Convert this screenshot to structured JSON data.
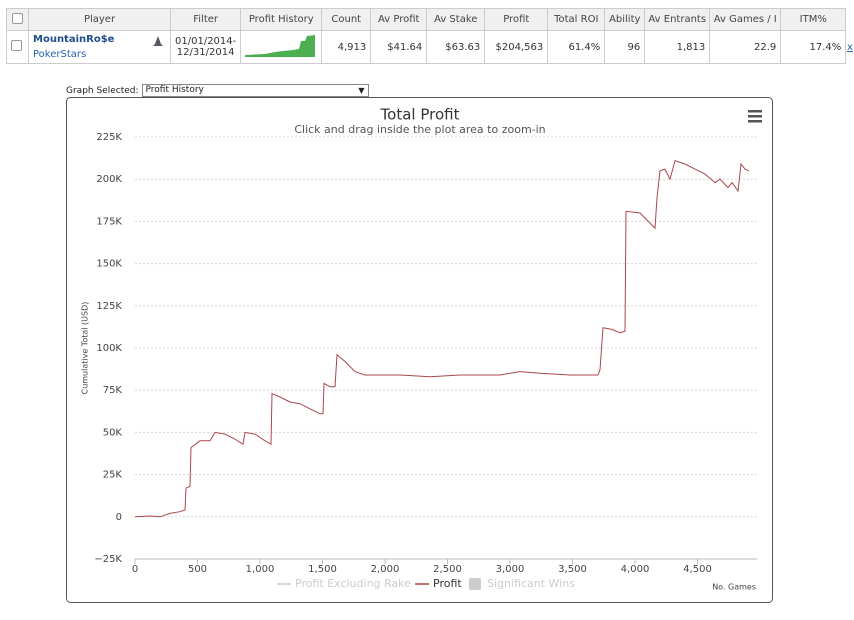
{
  "table": {
    "headers": [
      "Player",
      "Filter",
      "Profit History",
      "Count",
      "Av Profit",
      "Av Stake",
      "Profit",
      "Total ROI",
      "Ability",
      "Av Entrants",
      "Av Games / I",
      "ITM%"
    ],
    "row": {
      "player": "MountainRo$e",
      "site": "PokerStars",
      "filter": "01/01/2014-12/31/2014",
      "count": "4,913",
      "av_profit": "$41.64",
      "av_stake": "$63.63",
      "profit": "$204,563",
      "total_roi": "61.4%",
      "ability": "96",
      "av_entrants": "1,813",
      "av_games": "22.9",
      "itm": "17.4%",
      "remove": "x"
    }
  },
  "graph_selector": {
    "label": "Graph Selected:",
    "value": "Profit History"
  },
  "chart_data": {
    "type": "line",
    "title": "Total Profit",
    "subtitle": "Click and drag inside the plot area to zoom-in",
    "y_label": "Cumulative Total (USD)",
    "x_label": "No. Games",
    "xlim": [
      0,
      4980
    ],
    "ylim": [
      -25000,
      225000
    ],
    "xticks": [
      0,
      500,
      {
        "value": 1000,
        "label": "1,000"
      },
      {
        "value": 1500,
        "label": "1,500"
      },
      {
        "value": 2000,
        "label": "2,000"
      },
      {
        "value": 2500,
        "label": "2,500"
      },
      {
        "value": 3000,
        "label": "3,000"
      },
      {
        "value": 3500,
        "label": "3,500"
      },
      {
        "value": 4000,
        "label": "4,000"
      },
      {
        "value": 4500,
        "label": "4,500"
      }
    ],
    "yticks": [
      {
        "value": -25000,
        "label": "−25K"
      },
      0,
      {
        "value": 25000,
        "label": "25K"
      },
      {
        "value": 50000,
        "label": "50K"
      },
      {
        "value": 75000,
        "label": "75K"
      },
      {
        "value": 100000,
        "label": "100K"
      },
      {
        "value": 125000,
        "label": "125K"
      },
      {
        "value": 150000,
        "label": "150K"
      },
      {
        "value": 175000,
        "label": "175K"
      },
      {
        "value": 200000,
        "label": "200K"
      },
      {
        "value": 225000,
        "label": "225K"
      }
    ],
    "grid": true,
    "x": [
      0,
      120,
      200,
      280,
      360,
      400,
      408,
      440,
      448,
      520,
      600,
      640,
      720,
      800,
      864,
      880,
      960,
      1040,
      1088,
      1096,
      1160,
      1240,
      1320,
      1400,
      1480,
      1504,
      1512,
      1560,
      1600,
      1616,
      1680,
      1760,
      1840,
      1960,
      2120,
      2360,
      2600,
      2920,
      3080,
      3240,
      3480,
      3704,
      3720,
      3744,
      3816,
      3880,
      3920,
      3928,
      4040,
      4120,
      4160,
      4176,
      4200,
      4240,
      4280,
      4320,
      4400,
      4480,
      4560,
      4640,
      4680,
      4744,
      4776,
      4824,
      4848,
      4880,
      4912
    ],
    "series": [
      {
        "name": "Profit",
        "color": "#a8474b",
        "values": [
          0,
          500,
          0,
          2000,
          3000,
          4000,
          17000,
          18000,
          41000,
          45000,
          45000,
          50000,
          49000,
          46000,
          43000,
          50000,
          49000,
          45000,
          43000,
          73000,
          71000,
          68000,
          67000,
          64000,
          61000,
          61000,
          79000,
          77000,
          77000,
          96000,
          92000,
          86000,
          84000,
          84000,
          84000,
          83000,
          84000,
          84000,
          86000,
          85000,
          84000,
          84000,
          87000,
          112000,
          111000,
          109000,
          110000,
          181000,
          180000,
          174000,
          171000,
          189000,
          205000,
          206000,
          200000,
          211000,
          209000,
          206000,
          203000,
          198000,
          200000,
          195000,
          198000,
          193000,
          209000,
          206000,
          205000
        ]
      }
    ],
    "hidden_series": [
      {
        "name": "Profit Excluding Rake",
        "color": "#cccccc",
        "symbol": "line"
      },
      {
        "name": "Significant Wins",
        "color": "#cccccc",
        "symbol": "square"
      }
    ]
  }
}
